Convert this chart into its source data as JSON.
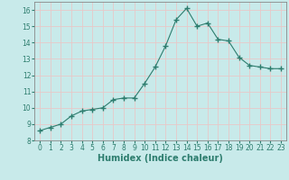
{
  "x": [
    0,
    1,
    2,
    3,
    4,
    5,
    6,
    7,
    8,
    9,
    10,
    11,
    12,
    13,
    14,
    15,
    16,
    17,
    18,
    19,
    20,
    21,
    22,
    23
  ],
  "y": [
    8.6,
    8.8,
    9.0,
    9.5,
    9.8,
    9.9,
    10.0,
    10.5,
    10.6,
    10.6,
    11.5,
    12.5,
    13.8,
    15.4,
    16.1,
    15.0,
    15.2,
    14.2,
    14.1,
    13.1,
    12.6,
    12.5,
    12.4,
    12.4
  ],
  "line_color": "#2d7d6e",
  "marker": "+",
  "marker_size": 4,
  "bg_color": "#c8eaea",
  "grid_color": "#e8c8c8",
  "xlabel": "Humidex (Indice chaleur)",
  "xlim": [
    -0.5,
    23.5
  ],
  "ylim": [
    8,
    16.5
  ],
  "yticks": [
    8,
    9,
    10,
    11,
    12,
    13,
    14,
    15,
    16
  ],
  "xticks": [
    0,
    1,
    2,
    3,
    4,
    5,
    6,
    7,
    8,
    9,
    10,
    11,
    12,
    13,
    14,
    15,
    16,
    17,
    18,
    19,
    20,
    21,
    22,
    23
  ],
  "tick_fontsize": 5.5,
  "label_fontsize": 7,
  "spine_color": "#888888",
  "tick_color": "#2d7d6e"
}
